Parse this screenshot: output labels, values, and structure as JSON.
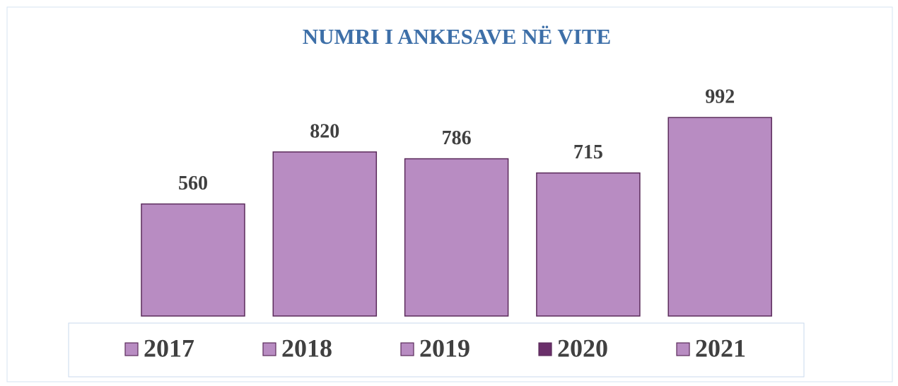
{
  "chart_data": {
    "type": "bar",
    "title": "NUMRI I ANKESAVE NË VITE",
    "categories": [
      "2017",
      "2018",
      "2019",
      "2020",
      "2021"
    ],
    "values": [
      560,
      820,
      786,
      715,
      992
    ],
    "color": "#b88cc2",
    "edgecolor": "#5b2b5b",
    "legend_colors": [
      "#b88cc2",
      "#b88cc2",
      "#b88cc2",
      "#6a2f6a",
      "#b88cc2"
    ],
    "ylim": [
      0,
      1000
    ],
    "legend": "bottom"
  }
}
